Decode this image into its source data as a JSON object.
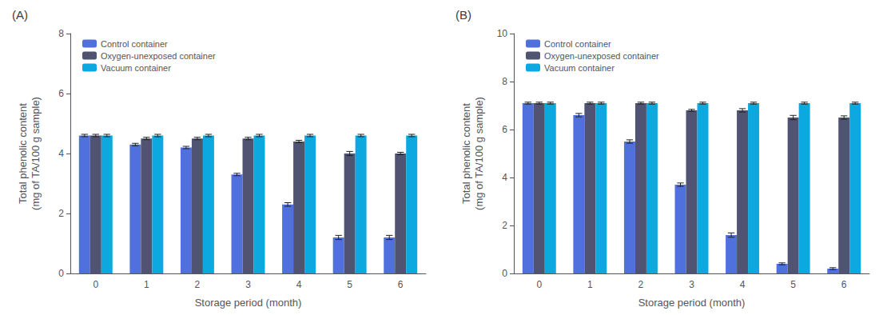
{
  "chart_data": [
    {
      "type": "bar",
      "title": "(A)",
      "xlabel": "Storage period (month)",
      "ylabel": "Total phenolic content\n(mg of TA/100 g sample)",
      "categories": [
        "0",
        "1",
        "2",
        "3",
        "4",
        "5",
        "6"
      ],
      "series": [
        {
          "name": "Control container",
          "values": [
            4.6,
            4.3,
            4.2,
            3.3,
            2.3,
            1.2,
            1.2
          ],
          "errors": [
            0.04,
            0.04,
            0.04,
            0.04,
            0.06,
            0.07,
            0.07
          ]
        },
        {
          "name": "Oxygen-unexposed container",
          "values": [
            4.6,
            4.5,
            4.5,
            4.5,
            4.4,
            4.0,
            4.0
          ],
          "errors": [
            0.04,
            0.04,
            0.04,
            0.04,
            0.04,
            0.07,
            0.04
          ]
        },
        {
          "name": "Vacuum container",
          "values": [
            4.6,
            4.6,
            4.6,
            4.6,
            4.6,
            4.6,
            4.6
          ],
          "errors": [
            0.04,
            0.04,
            0.04,
            0.04,
            0.04,
            0.04,
            0.04
          ]
        }
      ],
      "ylim": [
        0,
        8
      ],
      "yticks": [
        0,
        2,
        4,
        6,
        8
      ],
      "grid": false,
      "legend": "upper left"
    },
    {
      "type": "bar",
      "title": "(B)",
      "xlabel": "Storage period (month)",
      "ylabel": "Total phenolic content\n(mg of TA/100 g sample)",
      "categories": [
        "0",
        "1",
        "2",
        "3",
        "4",
        "5",
        "6"
      ],
      "series": [
        {
          "name": "Control container",
          "values": [
            7.1,
            6.6,
            5.5,
            3.7,
            1.6,
            0.4,
            0.2
          ],
          "errors": [
            0.04,
            0.07,
            0.07,
            0.07,
            0.09,
            0.04,
            0.04
          ]
        },
        {
          "name": "Oxygen-unexposed container",
          "values": [
            7.1,
            7.1,
            7.1,
            6.8,
            6.8,
            6.5,
            6.5
          ],
          "errors": [
            0.04,
            0.04,
            0.04,
            0.04,
            0.07,
            0.09,
            0.07
          ]
        },
        {
          "name": "Vacuum container",
          "values": [
            7.1,
            7.1,
            7.1,
            7.1,
            7.1,
            7.1,
            7.1
          ],
          "errors": [
            0.04,
            0.04,
            0.04,
            0.04,
            0.04,
            0.04,
            0.04
          ]
        }
      ],
      "ylim": [
        0,
        10
      ],
      "yticks": [
        0,
        2,
        4,
        6,
        8,
        10
      ],
      "grid": false,
      "legend": "upper left"
    }
  ]
}
